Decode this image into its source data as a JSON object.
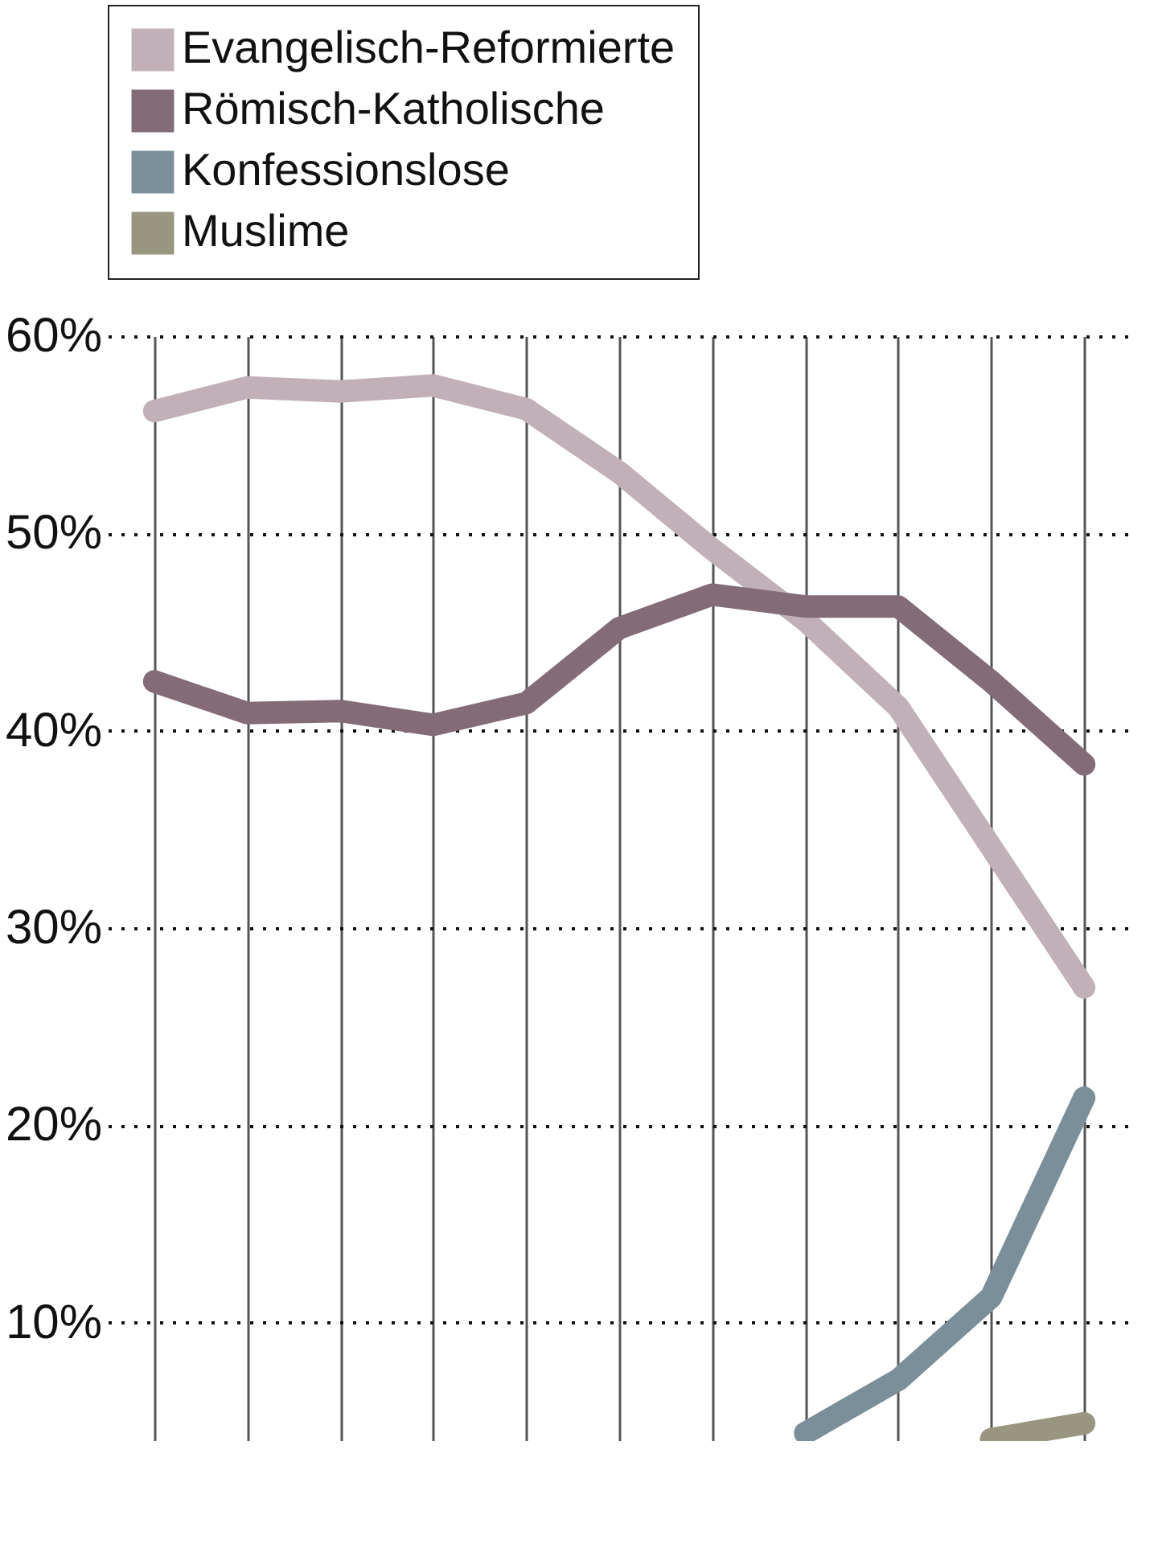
{
  "chart_data": {
    "type": "line",
    "categories": [
      null,
      null,
      null,
      null,
      null,
      null,
      null,
      null,
      null,
      null,
      null
    ],
    "series": [
      {
        "name": "Evangelisch-Reformierte",
        "color": "#c2b0b9",
        "values": [
          56.2,
          57.4,
          57.2,
          57.5,
          56.3,
          53.1,
          49.2,
          45.6,
          41.2,
          34.1,
          27.0
        ]
      },
      {
        "name": "Römisch-Katholische",
        "color": "#836b78",
        "values": [
          42.5,
          40.9,
          41.0,
          40.3,
          41.4,
          45.2,
          46.9,
          46.3,
          46.3,
          42.5,
          38.3
        ]
      },
      {
        "name": "Konfessionslose",
        "color": "#7b8f9b",
        "values": [
          null,
          null,
          null,
          null,
          null,
          null,
          null,
          4.4,
          7.1,
          11.3,
          21.4
        ]
      },
      {
        "name": "Muslime",
        "color": "#989680",
        "values": [
          null,
          null,
          null,
          null,
          null,
          null,
          null,
          null,
          null,
          4.1,
          4.9
        ]
      }
    ],
    "ylim": [
      4,
      60
    ],
    "yticks": [
      {
        "value": 10,
        "label": "10%"
      },
      {
        "value": 20,
        "label": "20%"
      },
      {
        "value": 30,
        "label": "30%"
      },
      {
        "value": 40,
        "label": "40%"
      },
      {
        "value": 50,
        "label": "50%"
      },
      {
        "value": 60,
        "label": "60%"
      }
    ],
    "grid": true,
    "legend": "top",
    "tick_labels": "y",
    "line_style": "solid",
    "marker": "none"
  }
}
